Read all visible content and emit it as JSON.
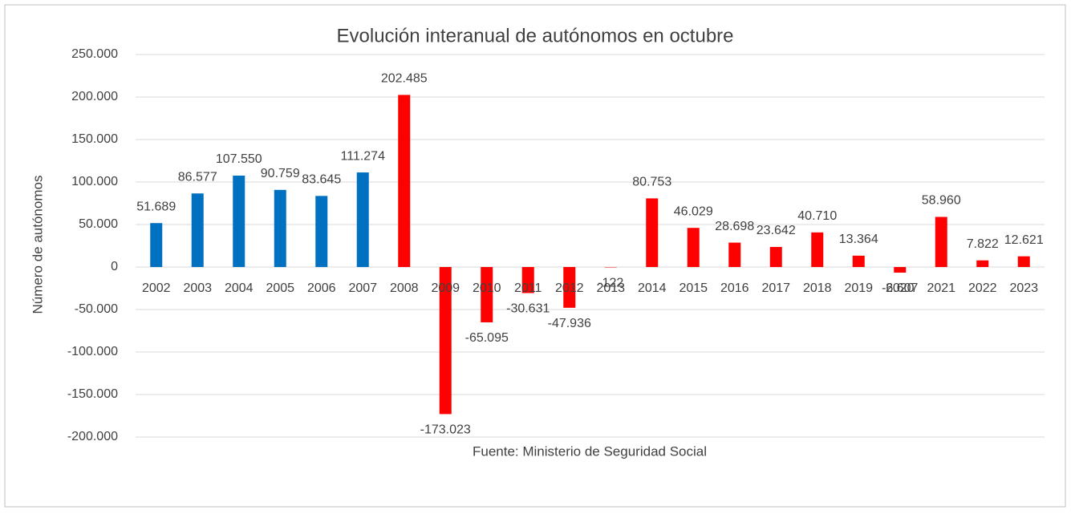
{
  "chart_data": {
    "type": "bar",
    "title": "Evolución interanual de autónomos en octubre",
    "y_label": "Número de autónomos",
    "source": "Fuente: Ministerio de Seguridad Social",
    "categories": [
      "2002",
      "2003",
      "2004",
      "2005",
      "2006",
      "2007",
      "2008",
      "2009",
      "2010",
      "2011",
      "2012",
      "2013",
      "2014",
      "2015",
      "2016",
      "2017",
      "2018",
      "2019",
      "2020",
      "2021",
      "2022",
      "2023"
    ],
    "values": [
      51689,
      86577,
      107550,
      90759,
      83645,
      111274,
      202485,
      -173023,
      -65095,
      -30631,
      -47936,
      -122,
      80753,
      46029,
      28698,
      23642,
      40710,
      13364,
      -6607,
      58960,
      7822,
      12621
    ],
    "value_labels": [
      "51.689",
      "86.577",
      "107.550",
      "90.759",
      "83.645",
      "111.274",
      "202.485",
      "-173.023",
      "-65.095",
      "-30.631",
      "-47.936",
      "-122",
      "80.753",
      "46.029",
      "28.698",
      "23.642",
      "40.710",
      "13.364",
      "-6.607",
      "58.960",
      "7.822",
      "12.621"
    ],
    "colors": [
      "#0070c0",
      "#0070c0",
      "#0070c0",
      "#0070c0",
      "#0070c0",
      "#0070c0",
      "#ff0000",
      "#ff0000",
      "#ff0000",
      "#ff0000",
      "#ff0000",
      "#ff0000",
      "#ff0000",
      "#ff0000",
      "#ff0000",
      "#ff0000",
      "#ff0000",
      "#ff0000",
      "#ff0000",
      "#ff0000",
      "#ff0000",
      "#ff0000"
    ],
    "ylim": [
      -200000,
      250000
    ],
    "yticks": [
      {
        "value": -200000,
        "label": "-200.000"
      },
      {
        "value": -150000,
        "label": "-150.000"
      },
      {
        "value": -100000,
        "label": "-100.000"
      },
      {
        "value": -50000,
        "label": "-50.000"
      },
      0,
      {
        "value": 50000,
        "label": "50.000"
      },
      {
        "value": 100000,
        "label": "100.000"
      },
      {
        "value": 150000,
        "label": "150.000"
      },
      {
        "value": 200000,
        "label": "200.000"
      },
      {
        "value": 250000,
        "label": "250.000"
      }
    ],
    "grid": true
  }
}
